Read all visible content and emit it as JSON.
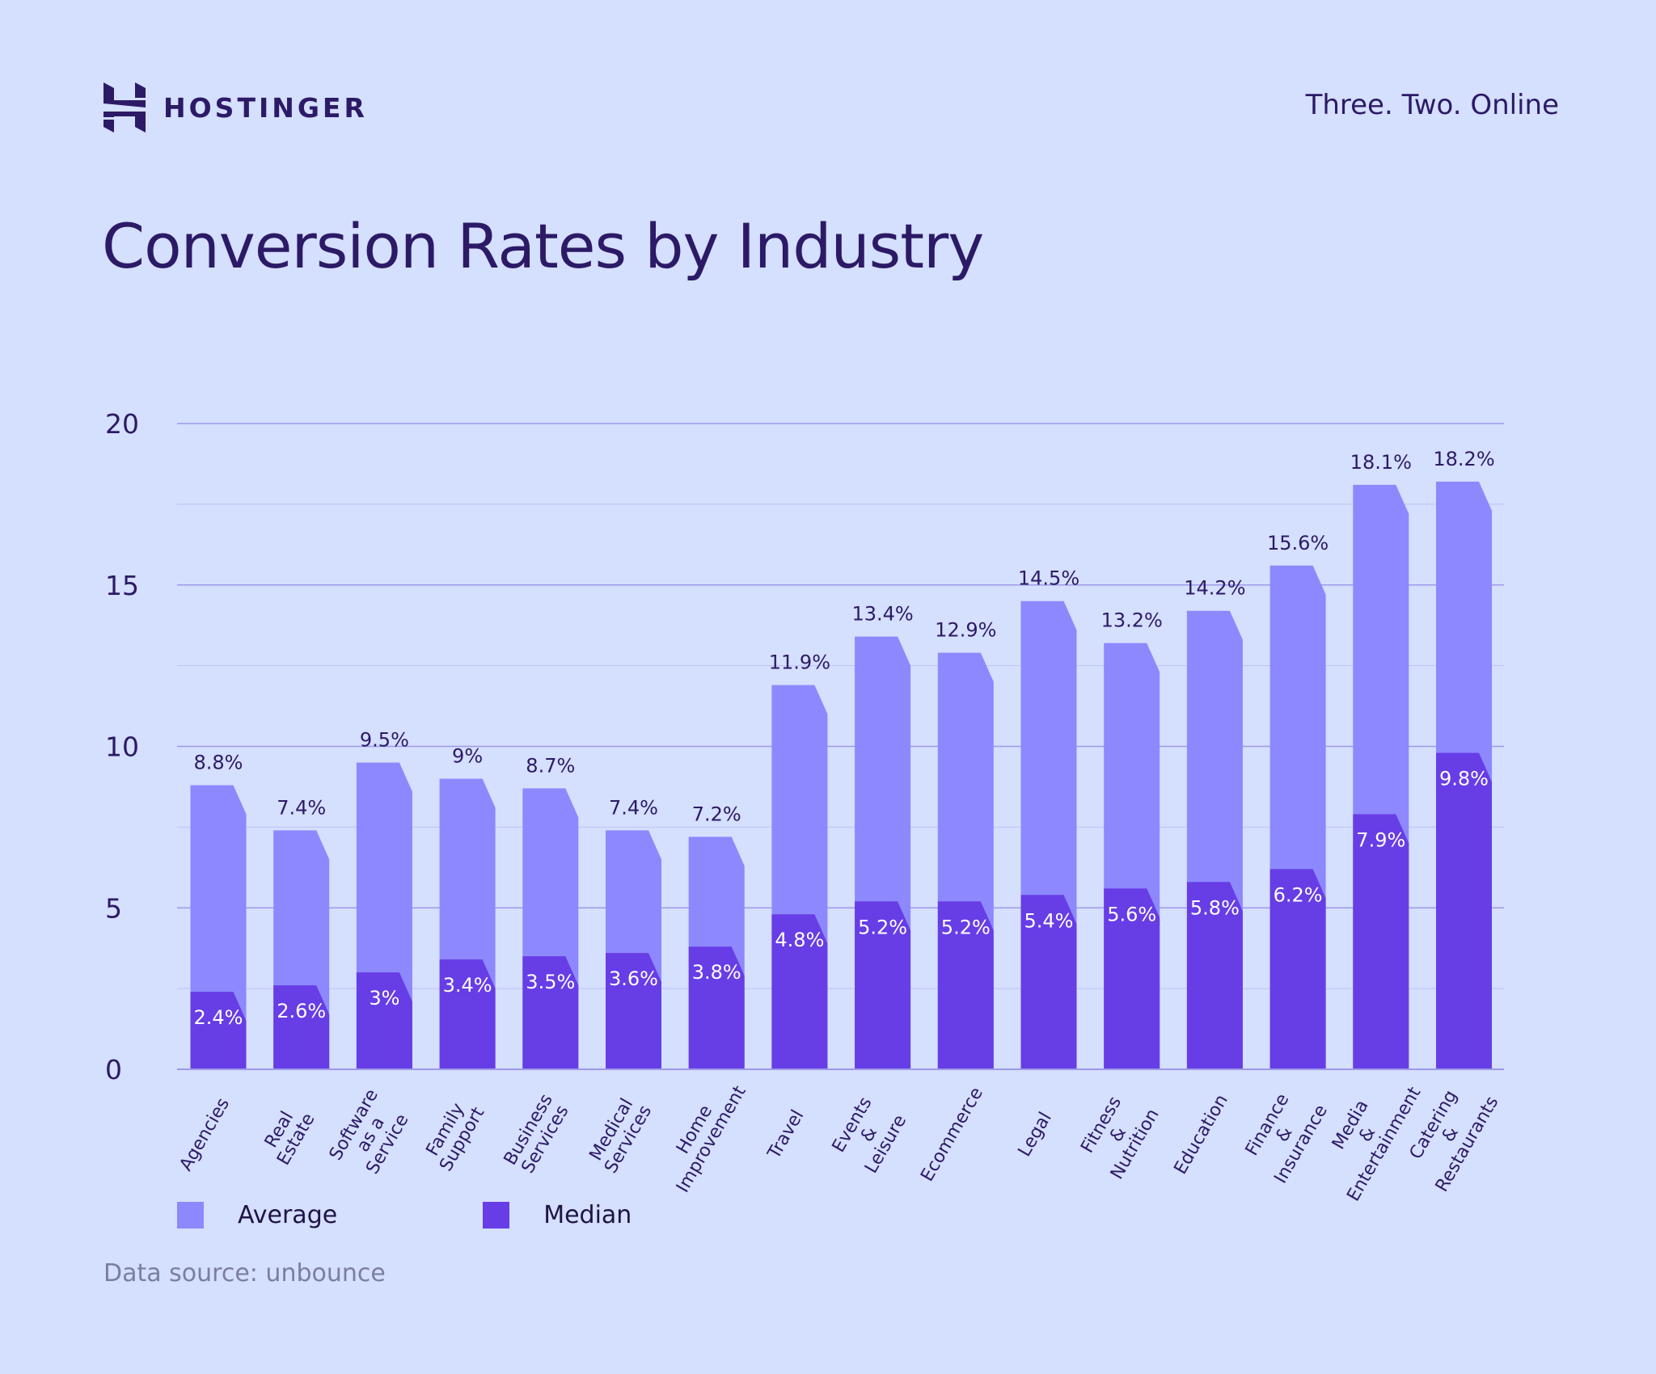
{
  "header": {
    "brand": "HOSTINGER",
    "tagline": "Three. Two. Online"
  },
  "title": "Conversion Rates by Industry",
  "source": "Data source: unbounce",
  "colors": {
    "background": "#d5dffe",
    "average": "#8d88fe",
    "median": "#673de6",
    "text": "#2c1a66"
  },
  "chart_data": {
    "type": "bar",
    "title": "Conversion Rates by Industry",
    "ylim": [
      0,
      20
    ],
    "yticks": [
      "0",
      "5",
      "10",
      "15",
      "20"
    ],
    "grid": true,
    "legend_position": "bottom-left",
    "categories": [
      "Agencies",
      "Real Estate",
      "Software as a Service",
      "Family Support",
      "Business Services",
      "Medical Services",
      "Home Improvement",
      "Travel",
      "Events & Leisure",
      "Ecommerce",
      "Legal",
      "Fitness & Nutrition",
      "Education",
      "Finance & Insurance",
      "Media & Entertainment",
      "Catering & Restaurants"
    ],
    "category_lines": [
      [
        "Agencies"
      ],
      [
        "Real",
        "Estate"
      ],
      [
        "Software",
        "as a",
        "Service"
      ],
      [
        "Family",
        "Support"
      ],
      [
        "Business",
        "Services"
      ],
      [
        "Medical",
        "Services"
      ],
      [
        "Home",
        "Improvement"
      ],
      [
        "Travel"
      ],
      [
        "Events",
        "&",
        "Leisure"
      ],
      [
        "Ecommerce"
      ],
      [
        "Legal"
      ],
      [
        "Fitness",
        "&",
        "Nutrition"
      ],
      [
        "Education"
      ],
      [
        "Finance",
        "&",
        "Insurance"
      ],
      [
        "Media",
        "&",
        "Entertainment"
      ],
      [
        "Catering",
        "&",
        "Restaurants"
      ]
    ],
    "series": [
      {
        "name": "Average",
        "values": [
          8.8,
          7.4,
          9.5,
          9,
          8.7,
          7.4,
          7.2,
          11.9,
          13.4,
          12.9,
          14.5,
          13.2,
          14.2,
          15.6,
          18.1,
          18.2
        ],
        "labels": [
          "8.8%",
          "7.4%",
          "9.5%",
          "9%",
          "8.7%",
          "7.4%",
          "7.2%",
          "11.9%",
          "13.4%",
          "12.9%",
          "14.5%",
          "13.2%",
          "14.2%",
          "15.6%",
          "18.1%",
          "18.2%"
        ]
      },
      {
        "name": "Median",
        "values": [
          2.4,
          2.6,
          3,
          3.4,
          3.5,
          3.6,
          3.8,
          4.8,
          5.2,
          5.2,
          5.4,
          5.6,
          5.8,
          6.2,
          7.9,
          9.8
        ],
        "labels": [
          "2.4%",
          "2.6%",
          "3%",
          "3.4%",
          "3.5%",
          "3.6%",
          "3.8%",
          "4.8%",
          "5.2%",
          "5.2%",
          "5.4%",
          "5.6%",
          "5.8%",
          "6.2%",
          "7.9%",
          "9.8%"
        ]
      }
    ]
  }
}
